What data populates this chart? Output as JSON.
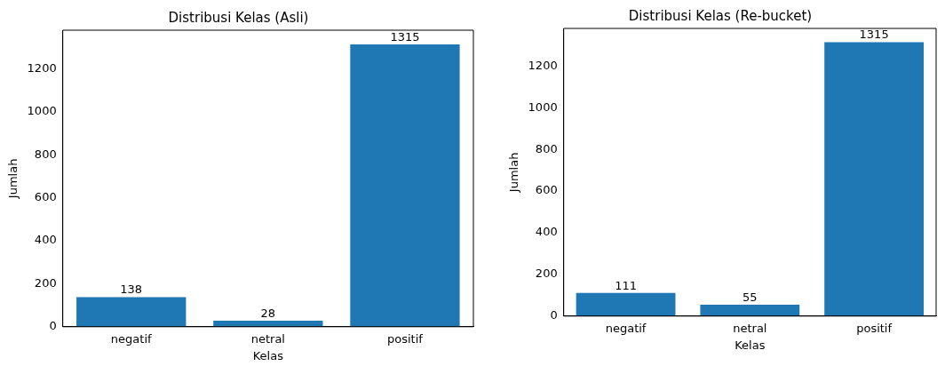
{
  "chart_data": [
    {
      "type": "bar",
      "title": "Distribusi Kelas (Asli)",
      "xlabel": "Kelas",
      "ylabel": "Jumlah",
      "categories": [
        "negatif",
        "netral",
        "positif"
      ],
      "values": [
        138,
        28,
        1315
      ],
      "color": "#1f77b4",
      "ylim": [
        0,
        1381
      ],
      "yticks": [
        0,
        200,
        400,
        600,
        800,
        1000,
        1200
      ],
      "data_labels": true,
      "grid": false,
      "legend": false
    },
    {
      "type": "bar",
      "title": "Distribusi Kelas (Re-bucket)",
      "xlabel": "Kelas",
      "ylabel": "Jumlah",
      "categories": [
        "negatif",
        "netral",
        "positif"
      ],
      "values": [
        111,
        55,
        1315
      ],
      "color": "#1f77b4",
      "ylim": [
        0,
        1381
      ],
      "yticks": [
        0,
        200,
        400,
        600,
        800,
        1000,
        1200
      ],
      "data_labels": true,
      "grid": false,
      "legend": false
    }
  ]
}
